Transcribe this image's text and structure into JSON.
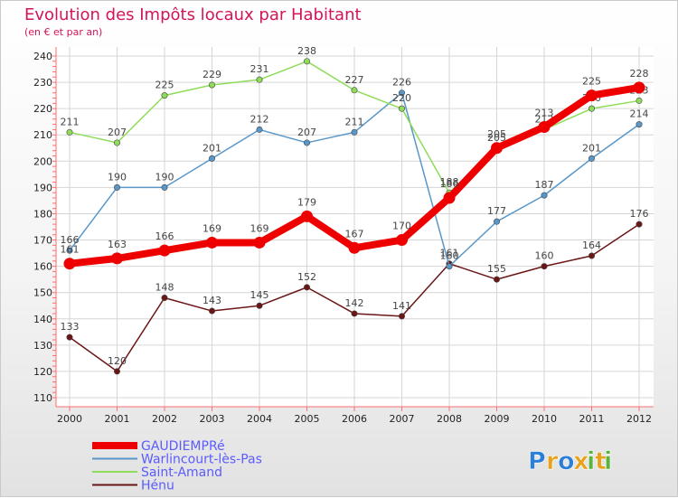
{
  "chart_data": {
    "type": "line",
    "title": "Evolution des Impôts locaux par Habitant",
    "subtitle": "(en € et par an)",
    "x": [
      "2000",
      "2001",
      "2002",
      "2003",
      "2004",
      "2005",
      "2006",
      "2007",
      "2008",
      "2009",
      "2010",
      "2011",
      "2012"
    ],
    "ylim": [
      110,
      240
    ],
    "yticks": [
      110,
      120,
      130,
      140,
      150,
      160,
      170,
      180,
      190,
      200,
      210,
      220,
      230,
      240
    ],
    "grid": true,
    "legend_position": "bottom-left",
    "series": [
      {
        "name": "Hénu",
        "color": "#6b1616",
        "values": [
          133,
          120,
          148,
          143,
          145,
          152,
          142,
          141,
          161,
          155,
          160,
          164,
          176
        ]
      },
      {
        "name": "Warlincourt-lès-Pas",
        "color": "#5a97c9",
        "values": [
          166,
          190,
          190,
          201,
          212,
          207,
          211,
          226,
          160,
          177,
          187,
          201,
          214
        ]
      },
      {
        "name": "Saint-Amand",
        "color": "#8fdc5a",
        "values": [
          211,
          207,
          225,
          229,
          231,
          238,
          227,
          220,
          188,
          205,
          212,
          220,
          223
        ]
      },
      {
        "name": "GAUDIEMPRé",
        "color": "#ee0000",
        "values": [
          161,
          163,
          166,
          169,
          169,
          179,
          167,
          170,
          186,
          205,
          213,
          225,
          228
        ]
      }
    ]
  },
  "legend": [
    {
      "label": "GAUDIEMPRé",
      "color": "#ee0000"
    },
    {
      "label": "Warlincourt-lès-Pas",
      "color": "#5a97c9"
    },
    {
      "label": "Saint-Amand",
      "color": "#8fdc5a"
    },
    {
      "label": "Hénu",
      "color": "#6b1616"
    }
  ],
  "logo": {
    "text": "Proxiti",
    "letters": [
      "P",
      "r",
      "o",
      "x",
      "i",
      "t",
      "i"
    ],
    "colors": [
      "#2b7fd6",
      "#e8a21a",
      "#2b7fd6",
      "#e8a21a",
      "#5bb33a",
      "#e8a21a",
      "#5bb33a"
    ]
  }
}
